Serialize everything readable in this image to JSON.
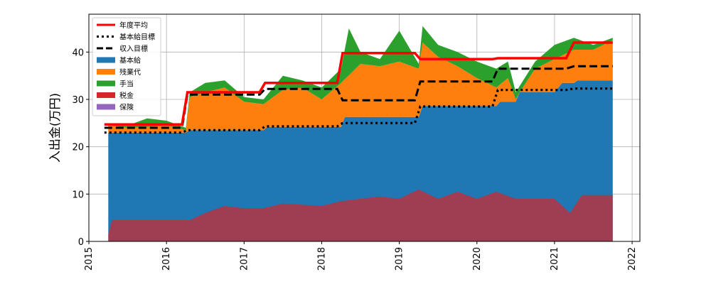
{
  "chart_data": {
    "type": "area",
    "ylabel": "入出金(万円)",
    "xlim": [
      2015.0,
      2022.1
    ],
    "ylim": [
      0,
      48
    ],
    "grid": true,
    "legend_placement": "top-left",
    "x_ticks": [
      2015,
      2016,
      2017,
      2018,
      2019,
      2020,
      2021,
      2022
    ],
    "y_ticks": [
      0,
      10,
      20,
      30,
      40
    ],
    "x_tick_labels": [
      "2015",
      "2016",
      "2017",
      "2018",
      "2019",
      "2020",
      "2021",
      "2022"
    ],
    "y_tick_labels": [
      "0",
      "10",
      "20",
      "30",
      "40"
    ],
    "colors": {
      "kihonkyu": "#1f77b4",
      "zangyodai": "#ff7f0e",
      "teate": "#2ca02c",
      "zeikin": "#d62728",
      "hoken": "#9467bd",
      "nendo_heikin": "#ff0000",
      "goal": "#000000"
    },
    "legend": [
      {
        "key": "nendo_heikin",
        "label": "年度平均",
        "style": "solid-red"
      },
      {
        "key": "kihonkyu_goal",
        "label": "基本給目標",
        "style": "dotted-black"
      },
      {
        "key": "shunyu_goal",
        "label": "収入目標",
        "style": "dashed-black"
      },
      {
        "key": "kihonkyu",
        "label": "基本給",
        "style": "patch"
      },
      {
        "key": "zangyodai",
        "label": "残業代",
        "style": "patch"
      },
      {
        "key": "teate",
        "label": "手当",
        "style": "patch"
      },
      {
        "key": "zeikin",
        "label": "税金",
        "style": "patch"
      },
      {
        "key": "hoken",
        "label": "保険",
        "style": "patch"
      }
    ],
    "stacked_series": [
      {
        "key": "kihonkyu",
        "points": [
          [
            2015.25,
            23
          ],
          [
            2016.25,
            23
          ],
          [
            2016.3,
            23.5
          ],
          [
            2017.25,
            23.5
          ],
          [
            2017.3,
            24.2
          ],
          [
            2018.25,
            24.2
          ],
          [
            2018.3,
            26.3
          ],
          [
            2019.25,
            26.3
          ],
          [
            2019.3,
            28.6
          ],
          [
            2020.25,
            28.6
          ],
          [
            2020.3,
            29.5
          ],
          [
            2020.5,
            29.5
          ],
          [
            2020.55,
            31.5
          ],
          [
            2021.0,
            31.5
          ],
          [
            2021.1,
            33.5
          ],
          [
            2021.25,
            33.5
          ],
          [
            2021.3,
            34.0
          ],
          [
            2021.75,
            34.0
          ]
        ]
      },
      {
        "key": "zangyodai",
        "points": [
          [
            2015.25,
            24.5
          ],
          [
            2015.5,
            24.0
          ],
          [
            2015.75,
            24.2
          ],
          [
            2016.0,
            24.5
          ],
          [
            2016.25,
            23.5
          ],
          [
            2016.3,
            30.5
          ],
          [
            2016.5,
            31.5
          ],
          [
            2016.75,
            32.5
          ],
          [
            2017.0,
            29.5
          ],
          [
            2017.25,
            29.0
          ],
          [
            2017.5,
            32.0
          ],
          [
            2017.75,
            32.5
          ],
          [
            2018.0,
            30.0
          ],
          [
            2018.25,
            33.5
          ],
          [
            2018.5,
            37.5
          ],
          [
            2018.75,
            37.0
          ],
          [
            2019.0,
            38.0
          ],
          [
            2019.25,
            36.5
          ],
          [
            2019.3,
            42.0
          ],
          [
            2019.5,
            39.0
          ],
          [
            2019.75,
            37.0
          ],
          [
            2020.0,
            34.5
          ],
          [
            2020.25,
            32.5
          ],
          [
            2020.4,
            34.5
          ],
          [
            2020.5,
            30.0
          ],
          [
            2020.75,
            36.5
          ],
          [
            2021.0,
            38.5
          ],
          [
            2021.25,
            40.5
          ],
          [
            2021.5,
            40.5
          ],
          [
            2021.75,
            42.5
          ]
        ]
      },
      {
        "key": "teate",
        "points": [
          [
            2015.25,
            24.8
          ],
          [
            2015.5,
            24.5
          ],
          [
            2015.75,
            26.0
          ],
          [
            2016.0,
            25.5
          ],
          [
            2016.25,
            24.0
          ],
          [
            2016.3,
            31.5
          ],
          [
            2016.5,
            33.5
          ],
          [
            2016.75,
            34.0
          ],
          [
            2017.0,
            30.5
          ],
          [
            2017.25,
            30.0
          ],
          [
            2017.5,
            35.0
          ],
          [
            2017.75,
            34.0
          ],
          [
            2018.0,
            32.5
          ],
          [
            2018.25,
            36.5
          ],
          [
            2018.35,
            45.0
          ],
          [
            2018.5,
            40.0
          ],
          [
            2018.75,
            38.5
          ],
          [
            2019.0,
            44.5
          ],
          [
            2019.25,
            37.5
          ],
          [
            2019.3,
            45.5
          ],
          [
            2019.5,
            41.5
          ],
          [
            2019.75,
            40.0
          ],
          [
            2020.0,
            38.0
          ],
          [
            2020.25,
            36.5
          ],
          [
            2020.4,
            38.0
          ],
          [
            2020.5,
            31.5
          ],
          [
            2020.75,
            38.0
          ],
          [
            2021.0,
            41.5
          ],
          [
            2021.25,
            43.0
          ],
          [
            2021.5,
            41.5
          ],
          [
            2021.75,
            43.0
          ]
        ]
      }
    ],
    "deduction_series": [
      {
        "key": "zeikin",
        "points": [
          [
            2015.25,
            1.5
          ],
          [
            2015.3,
            4.5
          ],
          [
            2016.0,
            4.5
          ],
          [
            2016.3,
            4.5
          ],
          [
            2016.5,
            6.0
          ],
          [
            2016.75,
            7.5
          ],
          [
            2017.0,
            7.0
          ],
          [
            2017.25,
            7.0
          ],
          [
            2017.5,
            8.0
          ],
          [
            2018.0,
            7.5
          ],
          [
            2018.25,
            8.5
          ],
          [
            2018.75,
            9.5
          ],
          [
            2019.0,
            9.0
          ],
          [
            2019.25,
            11.0
          ],
          [
            2019.5,
            9.0
          ],
          [
            2019.75,
            10.5
          ],
          [
            2020.0,
            9.0
          ],
          [
            2020.25,
            10.5
          ],
          [
            2020.5,
            9.0
          ],
          [
            2021.0,
            9.0
          ],
          [
            2021.2,
            6.0
          ],
          [
            2021.35,
            9.8
          ],
          [
            2021.75,
            9.8
          ]
        ]
      }
    ],
    "nendo_heikin": [
      [
        2015.2,
        24.7
      ],
      [
        2016.2,
        24.7
      ],
      [
        2016.27,
        31.5
      ],
      [
        2017.2,
        31.5
      ],
      [
        2017.27,
        33.5
      ],
      [
        2018.2,
        33.5
      ],
      [
        2018.27,
        39.8
      ],
      [
        2019.2,
        39.8
      ],
      [
        2019.27,
        38.5
      ],
      [
        2020.2,
        38.5
      ],
      [
        2020.27,
        38.7
      ],
      [
        2021.15,
        38.7
      ],
      [
        2021.25,
        42.0
      ],
      [
        2021.75,
        42.0
      ]
    ],
    "kihonkyu_goal": [
      [
        2015.2,
        23.0
      ],
      [
        2016.2,
        23.0
      ],
      [
        2016.27,
        23.5
      ],
      [
        2017.2,
        23.5
      ],
      [
        2017.27,
        24.3
      ],
      [
        2018.2,
        24.3
      ],
      [
        2018.27,
        25.0
      ],
      [
        2019.2,
        25.0
      ],
      [
        2019.27,
        28.5
      ],
      [
        2020.2,
        28.5
      ],
      [
        2020.27,
        32.0
      ],
      [
        2021.15,
        32.0
      ],
      [
        2021.25,
        32.3
      ],
      [
        2021.75,
        32.3
      ]
    ],
    "shunyu_goal": [
      [
        2015.2,
        24.0
      ],
      [
        2016.2,
        24.0
      ],
      [
        2016.27,
        31.0
      ],
      [
        2017.2,
        31.0
      ],
      [
        2017.27,
        32.2
      ],
      [
        2018.2,
        32.2
      ],
      [
        2018.27,
        29.8
      ],
      [
        2019.2,
        29.8
      ],
      [
        2019.27,
        33.8
      ],
      [
        2020.2,
        33.8
      ],
      [
        2020.27,
        36.5
      ],
      [
        2021.15,
        36.5
      ],
      [
        2021.25,
        37.0
      ],
      [
        2021.75,
        37.0
      ]
    ]
  }
}
